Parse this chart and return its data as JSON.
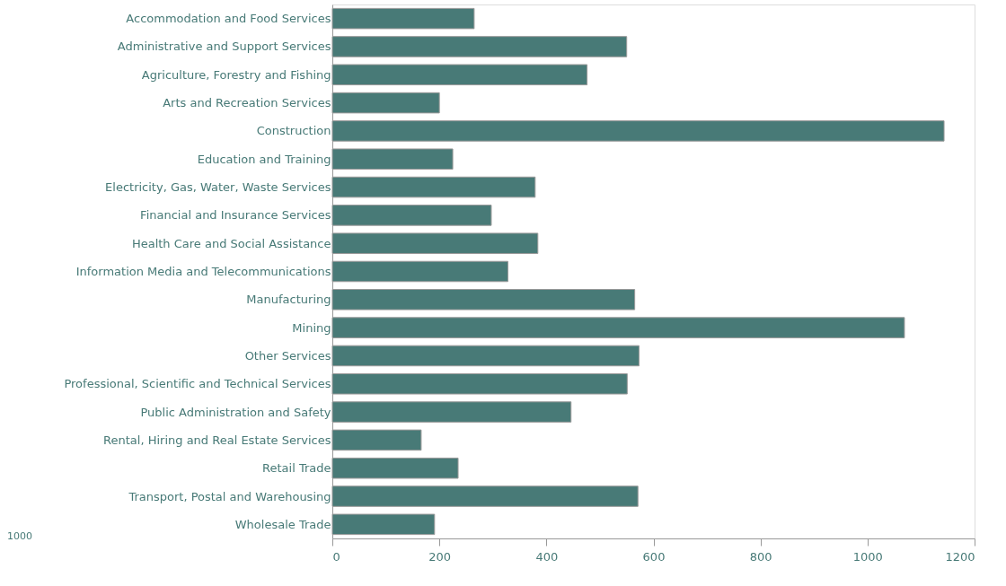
{
  "chart_data": {
    "type": "bar",
    "orientation": "horizontal",
    "categories": [
      "Accommodation and Food Services",
      "Administrative and Support Services",
      "Agriculture, Forestry and Fishing",
      "Arts and Recreation Services",
      "Construction",
      "Education and Training",
      "Electricity, Gas, Water, Waste Services",
      "Financial and Insurance Services",
      "Health Care and Social Assistance",
      "Information Media and Telecommunications",
      "Manufacturing",
      "Mining",
      "Other Services",
      "Professional, Scientific and Technical Services",
      "Public Administration and Safety",
      "Rental, Hiring and Real Estate Services",
      "Retail Trade",
      "Transport, Postal and Warehousing",
      "Wholesale Trade"
    ],
    "values": [
      265,
      550,
      476,
      200,
      1143,
      225,
      379,
      297,
      384,
      328,
      565,
      1069,
      573,
      551,
      446,
      166,
      235,
      571,
      191
    ],
    "color": "#487a77",
    "xlim": [
      0,
      1200
    ],
    "xticks": [
      0,
      200,
      400,
      600,
      800,
      1000,
      1200
    ],
    "grid": false,
    "annotations": [
      "1000"
    ]
  }
}
